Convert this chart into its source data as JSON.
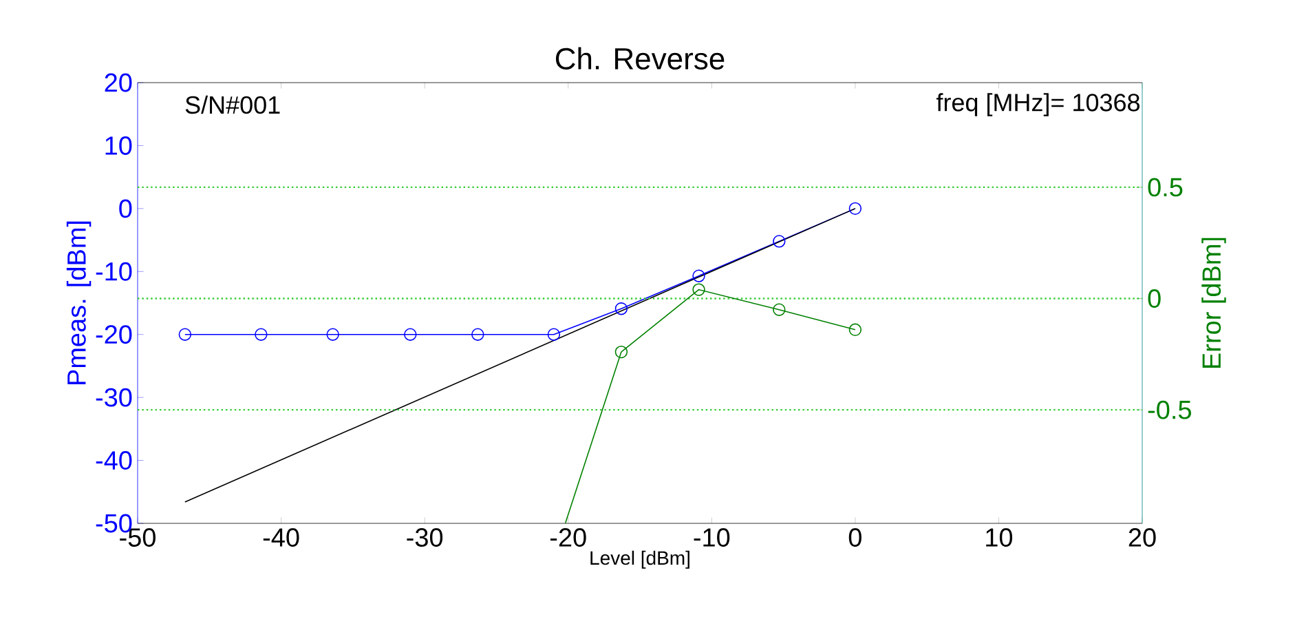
{
  "chart_data": {
    "type": "line",
    "title": "Ch. Reverse",
    "xlabel": "Level [dBm]",
    "ylabel": "Pmeas. [dBm]",
    "y2label": "Error [dBm]",
    "xlim": [
      -50,
      20
    ],
    "xticks": [
      -50,
      -40,
      -30,
      -20,
      -10,
      0,
      10,
      20
    ],
    "ylim": [
      -50,
      20
    ],
    "yticks": [
      -50,
      -40,
      -30,
      -20,
      -10,
      0,
      10,
      20
    ],
    "y2lim": [
      -1.01,
      0.97
    ],
    "y2ticks": [
      -0.5,
      0,
      0.5
    ],
    "line_style": "solid",
    "ref_lines": [
      {
        "axis": "y2",
        "value": -0.5,
        "color": "#33cc33",
        "line_style": "dotted"
      },
      {
        "axis": "y2",
        "value": 0,
        "color": "#33cc33",
        "line_style": "dotted"
      },
      {
        "axis": "y2",
        "value": 0.5,
        "color": "#33cc33",
        "line_style": "dotted"
      }
    ],
    "annotations": [
      "S/N#001",
      "freq [MHz]= 10368"
    ],
    "series": [
      {
        "color": "#0000ff",
        "marker": "circle",
        "x": [
          -46.7,
          -41.4,
          -36.4,
          -31.0,
          -26.3,
          -21.0,
          -16.3,
          -10.9,
          -5.3,
          0
        ],
        "values": [
          -20,
          -20,
          -20,
          -20,
          -20,
          -20,
          -15.9,
          -10.7,
          -5.2,
          0
        ]
      },
      {
        "color": "#000000",
        "marker": "none",
        "x": [
          -46.7,
          0
        ],
        "values": [
          -46.6,
          0
        ]
      },
      {
        "color": "#008000",
        "marker": "circle",
        "axis": "y2",
        "x": [
          -16.3,
          -10.9,
          -5.3,
          0
        ],
        "values": [
          -0.24,
          0.04,
          -0.05,
          -0.14
        ]
      },
      {
        "color": "#008000",
        "marker": "none",
        "axis": "y2",
        "x": [
          -20.2,
          -16.3
        ],
        "values": [
          -1.01,
          -0.24
        ]
      }
    ]
  }
}
